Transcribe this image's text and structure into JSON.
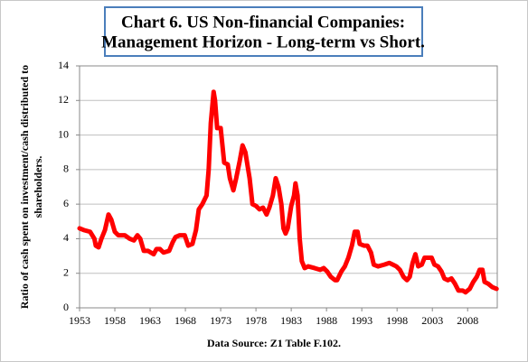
{
  "chart_data": {
    "type": "line",
    "title": [
      "Chart 6. US Non-financial Companies:",
      "Management Horizon - Long-term vs Short."
    ],
    "y_label": [
      "Ratio of cash spent on investment/cash distributed to",
      "shareholders."
    ],
    "source": "Data Source: Z1 Table F.102.",
    "x": [
      1953.0,
      1953.6,
      1954.5,
      1955.1,
      1955.3,
      1955.7,
      1956.1,
      1956.6,
      1957.1,
      1957.5,
      1958.0,
      1958.5,
      1959.4,
      1960.1,
      1960.7,
      1961.2,
      1961.6,
      1962.1,
      1962.7,
      1963.5,
      1963.9,
      1964.4,
      1964.9,
      1965.7,
      1966.2,
      1966.6,
      1967.2,
      1967.9,
      1968.4,
      1969.0,
      1969.5,
      1969.9,
      1970.4,
      1971.0,
      1971.3,
      1971.6,
      1972.0,
      1972.2,
      1972.5,
      1973.0,
      1973.5,
      1974.0,
      1974.3,
      1974.8,
      1975.2,
      1975.7,
      1976.1,
      1976.5,
      1976.9,
      1977.1,
      1977.5,
      1978.0,
      1978.5,
      1979.0,
      1979.5,
      1979.9,
      1980.4,
      1980.8,
      1981.2,
      1981.6,
      1981.9,
      1982.2,
      1982.5,
      1983.0,
      1983.4,
      1983.6,
      1983.9,
      1984.2,
      1984.5,
      1984.9,
      1985.4,
      1986.3,
      1987.1,
      1987.6,
      1988.1,
      1988.6,
      1989.2,
      1989.5,
      1990.1,
      1990.6,
      1991.1,
      1991.6,
      1992.0,
      1992.4,
      1992.7,
      1993.3,
      1993.8,
      1994.3,
      1994.7,
      1995.3,
      1996.2,
      1996.9,
      1997.4,
      1997.9,
      1998.4,
      1998.9,
      1999.4,
      1999.8,
      2000.2,
      2000.6,
      2001.0,
      2001.5,
      2001.9,
      2002.4,
      2002.9,
      2003.3,
      2003.8,
      2004.3,
      2004.7,
      2005.2,
      2005.7,
      2006.2,
      2006.7,
      2007.3,
      2007.7,
      2008.3,
      2008.8,
      2009.3,
      2009.7,
      2010.1,
      2010.4,
      2010.9,
      2011.5,
      2012.1
    ],
    "series": [
      {
        "color": "#ff0000",
        "values": [
          4.6,
          4.5,
          4.4,
          4.0,
          3.6,
          3.5,
          4.0,
          4.5,
          5.4,
          5.1,
          4.4,
          4.2,
          4.2,
          4.0,
          3.9,
          4.2,
          4.0,
          3.3,
          3.3,
          3.1,
          3.4,
          3.4,
          3.2,
          3.3,
          3.8,
          4.1,
          4.2,
          4.2,
          3.6,
          3.7,
          4.5,
          5.7,
          6.0,
          6.5,
          8.0,
          10.7,
          12.5,
          12.0,
          10.4,
          10.4,
          8.4,
          8.3,
          7.5,
          6.8,
          7.5,
          8.5,
          9.4,
          9.0,
          8.0,
          7.5,
          6.0,
          5.9,
          5.7,
          5.8,
          5.4,
          5.8,
          6.5,
          7.5,
          7.0,
          6.0,
          4.6,
          4.3,
          4.6,
          5.9,
          6.5,
          7.2,
          6.5,
          4.0,
          2.7,
          2.3,
          2.4,
          2.3,
          2.2,
          2.3,
          2.1,
          1.8,
          1.6,
          1.6,
          2.1,
          2.4,
          2.9,
          3.6,
          4.4,
          4.4,
          3.7,
          3.6,
          3.6,
          3.2,
          2.5,
          2.4,
          2.5,
          2.6,
          2.5,
          2.4,
          2.2,
          1.8,
          1.6,
          1.8,
          2.6,
          3.1,
          2.4,
          2.5,
          2.9,
          2.9,
          2.9,
          2.5,
          2.4,
          2.1,
          1.7,
          1.6,
          1.7,
          1.4,
          1.0,
          1.0,
          0.9,
          1.1,
          1.5,
          1.8,
          2.2,
          2.2,
          1.5,
          1.4,
          1.2,
          1.1
        ]
      }
    ],
    "xlim": [
      1953,
      2012.2
    ],
    "xticks": [
      1953,
      1958,
      1963,
      1968,
      1973,
      1978,
      1983,
      1988,
      1993,
      1998,
      2003,
      2008
    ],
    "ylim": [
      0,
      14
    ],
    "yticks": [
      0,
      2,
      4,
      6,
      8,
      10,
      12,
      14
    ],
    "grid": true
  }
}
